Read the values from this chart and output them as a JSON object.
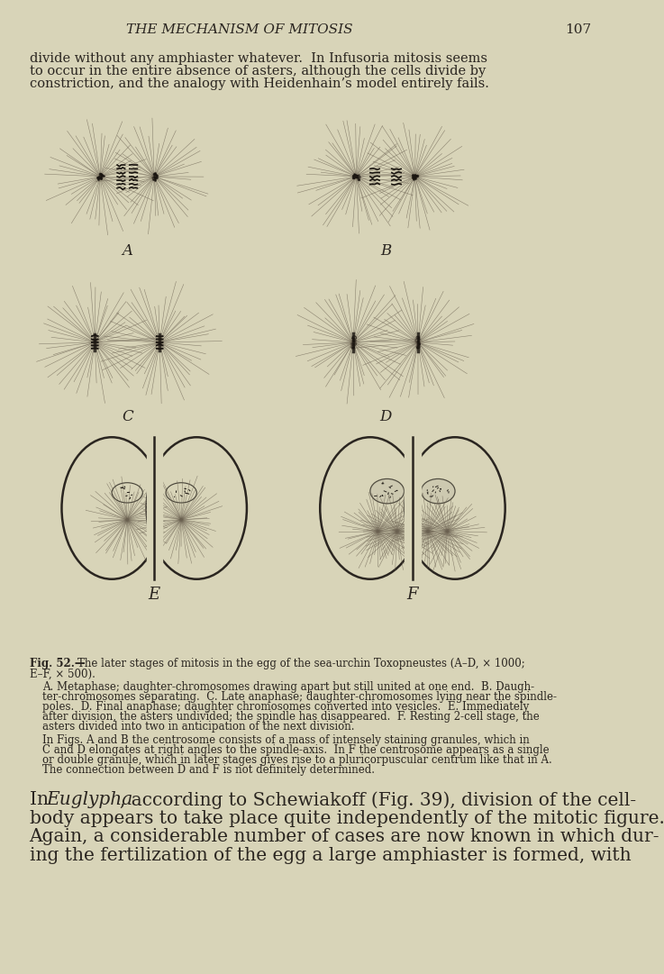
{
  "bg_color": "#d8d4b8",
  "page_color": "#d8d4b8",
  "header": "THE MECHANISM OF MITOSIS",
  "page_num": "107",
  "header_fontsize": 11,
  "intro_text": "divide without any amphiaster whatever.  In Infusoria mitosis seems\nto occur in the entire absence of asters, although the cells divide by\nconstriction, and the analogy with Heidenhain’s model entirely fails.",
  "intro_fontsize": 10.5,
  "fig_caption": "Fig. 52.— The later stages of mitosis in the egg of the sea-urchin Toxopneustes (A–D, × 1000;\nE–F, × 500).",
  "fig_caption_fontsize": 8.5,
  "body_text_1": "A. Metaphase; daughter-chromosomes drawing apart but still united at one end.  B. Daugh-\nter-chromosomes separating.  C. Late anaphase; daughter-chromosomes lying near the spindle-\npoles.  D. Final anaphase; daughter chromosomes converted into vesicles.  E. Immediately\nafter division, the asters undivided; the spindle has disappeared.  F. Resting 2-cell stage, the\nasters divided into two in anticipation of the next division.",
  "body_text_2": "In Figs. A and B the centrosome consists of a mass of intensely staining granules, which in\nC and D elongates at right angles to the spindle-axis.  In F the centrosome appears as a single\nor double granule, which in later stages gives rise to a pluricorpuscular centrum like that in A.\nThe connection between D and F is not definitely determined.",
  "body_fontsize": 8.5,
  "large_text": "In Euglypha, according to Schewiakoff (Fig. 39), division of the cell-\nbody appears to take place quite independently of the mitotic figure.\nAgain, a considerable number of cases are now known in which dur-\ning the fertilization of the egg a large amphiaster is formed, with",
  "large_fontsize": 14.5,
  "ink_color": "#2a2520",
  "label_A": "A",
  "label_B": "B",
  "label_C": "C",
  "label_D": "D",
  "label_E": "E",
  "label_F": "F"
}
